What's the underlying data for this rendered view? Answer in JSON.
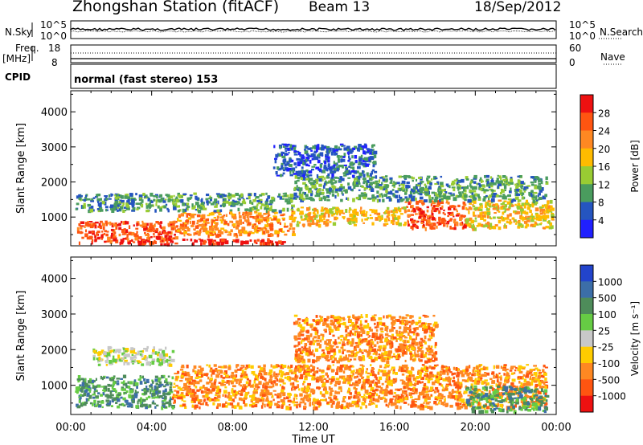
{
  "header": {
    "title": "Zhongshan Station (fitACF)",
    "beam": "Beam 13",
    "date": "18/Sep/2012"
  },
  "strips": {
    "nsky_label": "N.Sky",
    "nsearch_label": "N.Search",
    "nsky_ticks": [
      "10^5",
      "10^0"
    ],
    "nsearch_ticks": [
      "10^5",
      "10^0"
    ],
    "freq_label": "Freq.",
    "freq_unit": "[MHz]",
    "freq_ticks": [
      "18",
      "8"
    ],
    "nave_label": "Nave",
    "nave_ticks": [
      "60",
      "0"
    ],
    "cpid_label": "CPID",
    "cpid_value": "normal (fast stereo) 153"
  },
  "chart_data": [
    {
      "type": "heatmap",
      "name": "power",
      "ylabel": "Slant Range [km]",
      "ylim": [
        180,
        4600
      ],
      "yticks": [
        1000,
        2000,
        3000,
        4000
      ],
      "xlim": [
        0,
        24
      ],
      "colorbar": {
        "label": "Power [dB]",
        "ticks": [
          "28",
          "24",
          "20",
          "16",
          "12",
          "8",
          "4"
        ],
        "colors": [
          "#ee1111",
          "#ff5511",
          "#ff8822",
          "#ffbb00",
          "#99cc33",
          "#4a9c5e",
          "#2555c0",
          "#2020ff"
        ]
      },
      "regions": [
        {
          "x": [
            0.3,
            5.2
          ],
          "y": [
            300,
            900
          ],
          "level": 1
        },
        {
          "x": [
            5.2,
            11.0
          ],
          "y": [
            500,
            1200
          ],
          "level": 2
        },
        {
          "x": [
            2.0,
            10.5
          ],
          "y": [
            250,
            400
          ],
          "level": 0
        },
        {
          "x": [
            16.5,
            19.5
          ],
          "y": [
            700,
            1500
          ],
          "level": 1
        },
        {
          "x": [
            11.0,
            16.5
          ],
          "y": [
            800,
            1300
          ],
          "level": 3
        },
        {
          "x": [
            19.5,
            23.8
          ],
          "y": [
            700,
            1500
          ],
          "level": 3
        },
        {
          "x": [
            0.2,
            11.0
          ],
          "y": [
            1200,
            1700
          ],
          "level": 5
        },
        {
          "x": [
            11.0,
            23.5
          ],
          "y": [
            1500,
            2200
          ],
          "level": 5
        },
        {
          "x": [
            10.0,
            15.0
          ],
          "y": [
            2200,
            3100
          ],
          "level": 6
        }
      ]
    },
    {
      "type": "heatmap",
      "name": "velocity",
      "ylabel": "Slant Range [km]",
      "ylim": [
        180,
        4600
      ],
      "yticks": [
        1000,
        2000,
        3000,
        4000
      ],
      "xlim": [
        0,
        24
      ],
      "xlabel": "Time UT",
      "xticks": [
        "00:00",
        "04:00",
        "08:00",
        "12:00",
        "16:00",
        "20:00",
        "00:00"
      ],
      "colorbar": {
        "label": "Velocity [m s⁻¹]",
        "ticks": [
          "1000",
          "500",
          "100",
          "25",
          "-25",
          "-100",
          "-500",
          "-1000"
        ],
        "colors": [
          "#2244cc",
          "#3c6ea8",
          "#4e8c5a",
          "#66cc44",
          "#c8c8c8",
          "#ffcc00",
          "#ff8822",
          "#ff5511",
          "#ee1111"
        ]
      },
      "regions": [
        {
          "x": [
            0.2,
            5.0
          ],
          "y": [
            400,
            1300
          ],
          "level": 2
        },
        {
          "x": [
            5.0,
            23.5
          ],
          "y": [
            400,
            1600
          ],
          "level": 6
        },
        {
          "x": [
            1.0,
            5.0
          ],
          "y": [
            1600,
            2100
          ],
          "level": 4
        },
        {
          "x": [
            11.0,
            18.0
          ],
          "y": [
            1700,
            3000
          ],
          "level": 6
        },
        {
          "x": [
            19.5,
            23.5
          ],
          "y": [
            300,
            1000
          ],
          "level": 2
        }
      ]
    }
  ]
}
